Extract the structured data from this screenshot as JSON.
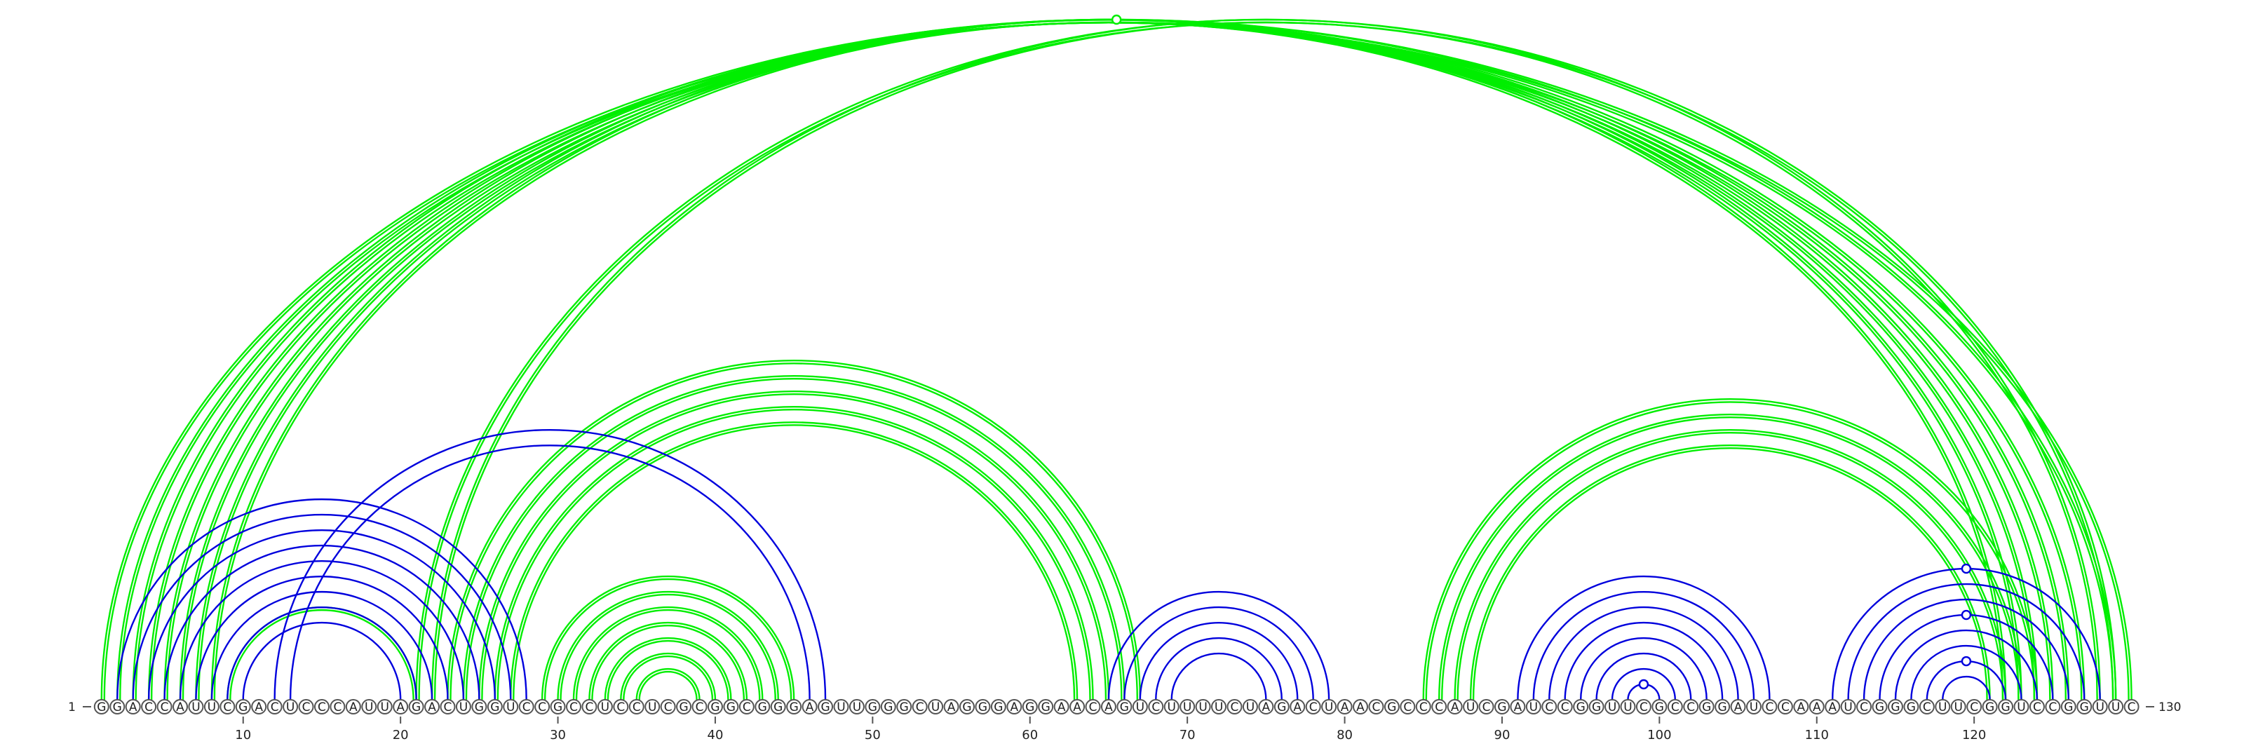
{
  "sequence": "GGACCAUUCGACUCCCAUUAGACUGGUCCGCCUCCUCGCGGCGGGAGUUGGGCUAGGGAGGAACAGUCUUUUCUAGACUAACGCCCAUCGAUCCGGUUCGCCGGAUCCAAAUCGGGCUUCGGUCCGGUUC",
  "start_label": "1",
  "end_label": "130",
  "tick_positions": [
    10,
    20,
    30,
    40,
    50,
    60,
    70,
    80,
    90,
    100,
    110,
    120
  ],
  "colors": {
    "structure_a": "#00ee00",
    "structure_b": "#0000dd"
  },
  "arc_groups": [
    {
      "structure": "a",
      "pairs": [
        [
          1,
          130
        ],
        [
          2,
          129
        ],
        [
          3,
          127
        ],
        [
          4,
          126
        ],
        [
          5,
          125
        ],
        [
          6,
          124
        ],
        [
          7,
          123
        ],
        [
          8,
          122
        ]
      ],
      "note_marker_on": [
        1,
        130
      ]
    },
    {
      "structure": "a",
      "pairs": [
        [
          9,
          21
        ],
        [
          21,
          129
        ],
        [
          22,
          128
        ],
        [
          23,
          67
        ],
        [
          24,
          66
        ],
        [
          25,
          65
        ],
        [
          26,
          64
        ],
        [
          27,
          63
        ]
      ]
    },
    {
      "structure": "a",
      "pairs": [
        [
          29,
          45
        ],
        [
          30,
          44
        ],
        [
          31,
          43
        ],
        [
          32,
          42
        ],
        [
          33,
          41
        ],
        [
          34,
          40
        ],
        [
          35,
          39
        ]
      ]
    },
    {
      "structure": "a",
      "pairs": [
        [
          85,
          124
        ],
        [
          86,
          123
        ],
        [
          87,
          122
        ],
        [
          88,
          121
        ]
      ]
    },
    {
      "structure": "b",
      "pairs": [
        [
          2,
          28
        ],
        [
          3,
          27
        ],
        [
          4,
          26
        ],
        [
          5,
          25
        ],
        [
          6,
          24
        ],
        [
          7,
          23
        ],
        [
          8,
          22
        ],
        [
          9,
          21
        ],
        [
          10,
          20
        ]
      ]
    },
    {
      "structure": "b",
      "pairs": [
        [
          12,
          47
        ],
        [
          13,
          46
        ]
      ]
    },
    {
      "structure": "b",
      "pairs": [
        [
          65,
          79
        ],
        [
          66,
          78
        ],
        [
          67,
          77
        ],
        [
          68,
          76
        ],
        [
          69,
          75
        ]
      ]
    },
    {
      "structure": "b",
      "pairs": [
        [
          91,
          107
        ],
        [
          92,
          106
        ],
        [
          93,
          105
        ],
        [
          94,
          104
        ],
        [
          95,
          103
        ],
        [
          96,
          102
        ],
        [
          97,
          101
        ],
        [
          98,
          100
        ]
      ]
    },
    {
      "structure": "b",
      "pairs": [
        [
          111,
          128
        ],
        [
          112,
          127
        ],
        [
          113,
          126
        ],
        [
          114,
          125
        ],
        [
          115,
          124
        ],
        [
          116,
          123
        ],
        [
          117,
          122
        ],
        [
          118,
          121
        ]
      ]
    }
  ],
  "markers": [
    {
      "structure": "a",
      "pair": [
        1,
        130
      ]
    },
    {
      "structure": "b",
      "pair": [
        98,
        100
      ]
    },
    {
      "structure": "b",
      "pair": [
        111,
        128
      ]
    },
    {
      "structure": "b",
      "pair": [
        114,
        125
      ]
    },
    {
      "structure": "b",
      "pair": [
        117,
        122
      ]
    }
  ]
}
